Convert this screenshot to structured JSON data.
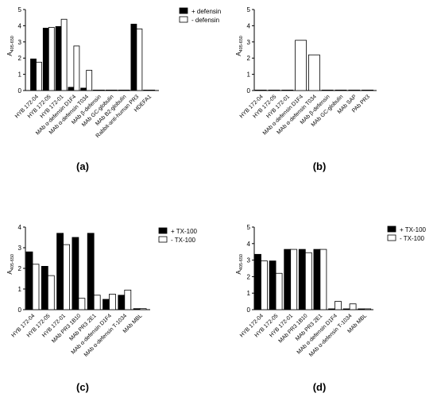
{
  "chart_data": [
    {
      "type": "bar",
      "panel_label": "(a)",
      "ylabel_main": "A",
      "ylabel_sub": "405-650",
      "ylim": [
        0,
        5
      ],
      "yticks": [
        "0",
        "1",
        "2",
        "3",
        "4",
        "5"
      ],
      "categories": [
        "HYB 172-04",
        "HYB 172-05",
        "HYB 172-01",
        "MAb α-defensin D1F4",
        "MAb α-defensin T034",
        "MAb β-defensin",
        "MAb GC-globulin",
        "MAb B2-globulin",
        "Rabbit-anti-human PR3",
        "HDEFA1"
      ],
      "series": [
        {
          "name": "+ defensin",
          "color": "#000000",
          "values": [
            1.95,
            3.85,
            3.95,
            0.2,
            0.15,
            0.02,
            0.02,
            0.02,
            4.1,
            0.02
          ]
        },
        {
          "name": "- defensin",
          "color": "#ffffff",
          "values": [
            1.75,
            3.9,
            4.4,
            2.75,
            1.25,
            0.02,
            0.02,
            0.02,
            3.8,
            0.02
          ]
        }
      ],
      "legend": "top-right"
    },
    {
      "type": "bar",
      "panel_label": "(b)",
      "ylabel_main": "A",
      "ylabel_sub": "405-650",
      "ylim": [
        0,
        5
      ],
      "yticks": [
        "0",
        "1",
        "2",
        "3",
        "4",
        "5"
      ],
      "categories": [
        "HYB 172-04",
        "HYB 172-05",
        "HYB 172-01",
        "MAb α-defensin D1F4",
        "MAb α-defensin T034",
        "MAb β-defensin",
        "MAb GC-globulin",
        "MAb SAP",
        "PAb PR3"
      ],
      "series": [
        {
          "name": "",
          "color": "#ffffff",
          "values": [
            0.02,
            0.02,
            0.02,
            3.1,
            2.2,
            0.02,
            0.02,
            0.02,
            0.02
          ]
        }
      ],
      "legend": "none"
    },
    {
      "type": "bar",
      "panel_label": "(c)",
      "ylabel_main": "A",
      "ylabel_sub": "405-650",
      "ylim": [
        0,
        4
      ],
      "yticks": [
        "0",
        "1",
        "2",
        "3",
        "4"
      ],
      "categories": [
        "HYB 172-04",
        "HYB 172-05",
        "HYB 172-01",
        "MAb PR3 1B10",
        "MAb PR3 2E1",
        "MAb α-defensin D1F4",
        "MAb α-defensin T-1034",
        "MAb MBL"
      ],
      "series": [
        {
          "name": "+ TX-100",
          "color": "#000000",
          "values": [
            2.8,
            2.1,
            3.7,
            3.5,
            3.7,
            0.5,
            0.7,
            0.05
          ]
        },
        {
          "name": "- TX-100",
          "color": "#ffffff",
          "values": [
            2.2,
            1.65,
            3.15,
            0.55,
            0.7,
            0.75,
            0.95,
            0.05
          ]
        }
      ],
      "legend": "top-right"
    },
    {
      "type": "bar",
      "panel_label": "(d)",
      "ylabel_main": "A",
      "ylabel_sub": "405-650",
      "ylim": [
        0,
        5
      ],
      "yticks": [
        "0",
        "1",
        "2",
        "3",
        "4",
        "5"
      ],
      "categories": [
        "HYB 172-04",
        "HYB 172-05",
        "HYB 172-01",
        "MAb PR3 1B10",
        "MAb PR3 2E1",
        "MAb α-defensin D1F4",
        "MAb α-defensin T-1034",
        "MAb MBL"
      ],
      "series": [
        {
          "name": "+ TX-100",
          "color": "#000000",
          "values": [
            3.35,
            2.95,
            3.65,
            3.65,
            3.65,
            0.05,
            0.05,
            0.05
          ]
        },
        {
          "name": "- TX-100",
          "color": "#ffffff",
          "values": [
            2.95,
            2.2,
            3.65,
            3.45,
            3.65,
            0.5,
            0.35,
            0.05
          ]
        }
      ],
      "legend": "top-right"
    }
  ]
}
